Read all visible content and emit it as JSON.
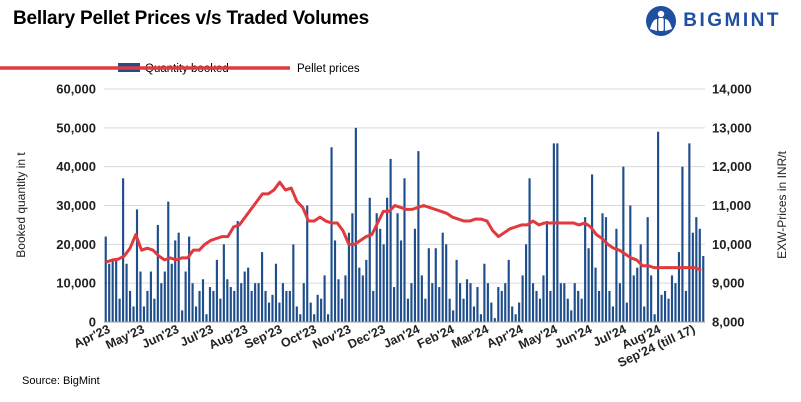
{
  "header": {
    "title": "Bellary Pellet Prices v/s Traded Volumes",
    "brand": "BIGMINT"
  },
  "footer": {
    "source": "Source: BigMint"
  },
  "colors": {
    "bar": "#1f4e8c",
    "line": "#e03a3e",
    "brand": "#1f4fa0"
  },
  "chart_data": {
    "type": "bar+line",
    "title": "Bellary Pellet Prices v/s Traded Volumes",
    "ylabel_left": "Booked quantity in t",
    "ylabel_right": "EXW-Prices in INR/t",
    "ylim_left": [
      0,
      60000
    ],
    "ylim_right": [
      8000,
      14000
    ],
    "yticks_left": [
      "0",
      "10,000",
      "20,000",
      "30,000",
      "40,000",
      "50,000",
      "60,000"
    ],
    "yticks_right": [
      "8,000",
      "9,000",
      "10,000",
      "11,000",
      "12,000",
      "13,000",
      "14,000"
    ],
    "xtick_labels": [
      "Apr'23",
      "May'23",
      "Jun'23",
      "Jul'23",
      "Aug'23",
      "Sep'23",
      "Oct'23",
      "Nov'23",
      "Dec'23",
      "Jan'24",
      "Feb'24",
      "Mar'24",
      "Apr'24",
      "May'24",
      "Jun'24",
      "Jul'24",
      "Aug'24",
      "Sep'24 (till 17)"
    ],
    "grid": true,
    "legend_position": "top-left",
    "series": [
      {
        "name": "Quantity booked",
        "type": "bar",
        "axis": "left",
        "values": [
          22000,
          15000,
          16000,
          16000,
          6000,
          37000,
          15000,
          8000,
          4000,
          29000,
          13000,
          4000,
          8000,
          13000,
          6000,
          25000,
          10000,
          13000,
          31000,
          15000,
          21000,
          23000,
          3000,
          13000,
          22000,
          10000,
          4000,
          8000,
          11000,
          2000,
          9000,
          8000,
          16000,
          6000,
          20000,
          11000,
          9000,
          8000,
          26000,
          10000,
          13000,
          14000,
          8000,
          10000,
          10000,
          18000,
          8000,
          5000,
          7000,
          15000,
          5000,
          10000,
          8000,
          8000,
          20000,
          4000,
          2000,
          10000,
          30000,
          5000,
          2000,
          7000,
          6000,
          12000,
          2000,
          45000,
          21000,
          11000,
          6000,
          12000,
          23000,
          28000,
          50000,
          14000,
          12000,
          16000,
          32000,
          8000,
          28000,
          24000,
          20000,
          32000,
          42000,
          9000,
          28000,
          21000,
          37000,
          6000,
          10000,
          24000,
          44000,
          12000,
          6000,
          19000,
          10000,
          19000,
          9000,
          23000,
          20000,
          6000,
          3000,
          16000,
          10000,
          6000,
          11000,
          10000,
          4000,
          9000,
          2000,
          15000,
          10000,
          5000,
          1000,
          9000,
          8000,
          10000,
          16000,
          4000,
          2000,
          5000,
          12000,
          20000,
          37000,
          10000,
          8000,
          6000,
          12000,
          26000,
          8000,
          46000,
          46000,
          10000,
          10000,
          6000,
          3000,
          10000,
          8000,
          6000,
          27000,
          19000,
          38000,
          14000,
          8000,
          28000,
          27000,
          8000,
          4000,
          24000,
          10000,
          40000,
          5000,
          30000,
          12000,
          14000,
          20000,
          4000,
          27000,
          12000,
          2000,
          49000,
          7000,
          8000,
          6000,
          12000,
          10000,
          18000,
          40000,
          8000,
          46000,
          23000,
          27000,
          24000,
          17000
        ]
      },
      {
        "name": "Pellet prices",
        "type": "line",
        "axis": "right",
        "values": [
          9550,
          9600,
          9620,
          9700,
          9900,
          10250,
          9850,
          9900,
          9850,
          9700,
          9600,
          9650,
          9600,
          9650,
          9650,
          9850,
          9850,
          10000,
          10100,
          10150,
          10200,
          10200,
          10450,
          10500,
          10700,
          10900,
          11100,
          11300,
          11300,
          11400,
          11600,
          11400,
          11450,
          11100,
          10950,
          10600,
          10600,
          10700,
          10600,
          10550,
          10550,
          10350,
          10000,
          10000,
          10100,
          10200,
          10250,
          10550,
          10850,
          10850,
          11000,
          10950,
          10900,
          10900,
          10950,
          11000,
          10950,
          10900,
          10850,
          10800,
          10700,
          10650,
          10600,
          10600,
          10650,
          10650,
          10600,
          10350,
          10200,
          10300,
          10400,
          10450,
          10500,
          10500,
          10600,
          10500,
          10550,
          10550,
          10550,
          10550,
          10550,
          10550,
          10500,
          10550,
          10450,
          10250,
          10150,
          10000,
          9900,
          9850,
          9750,
          9650,
          9600,
          9450,
          9450,
          9400,
          9400,
          9400,
          9400,
          9400,
          9400,
          9400,
          9400,
          9350
        ]
      }
    ]
  }
}
